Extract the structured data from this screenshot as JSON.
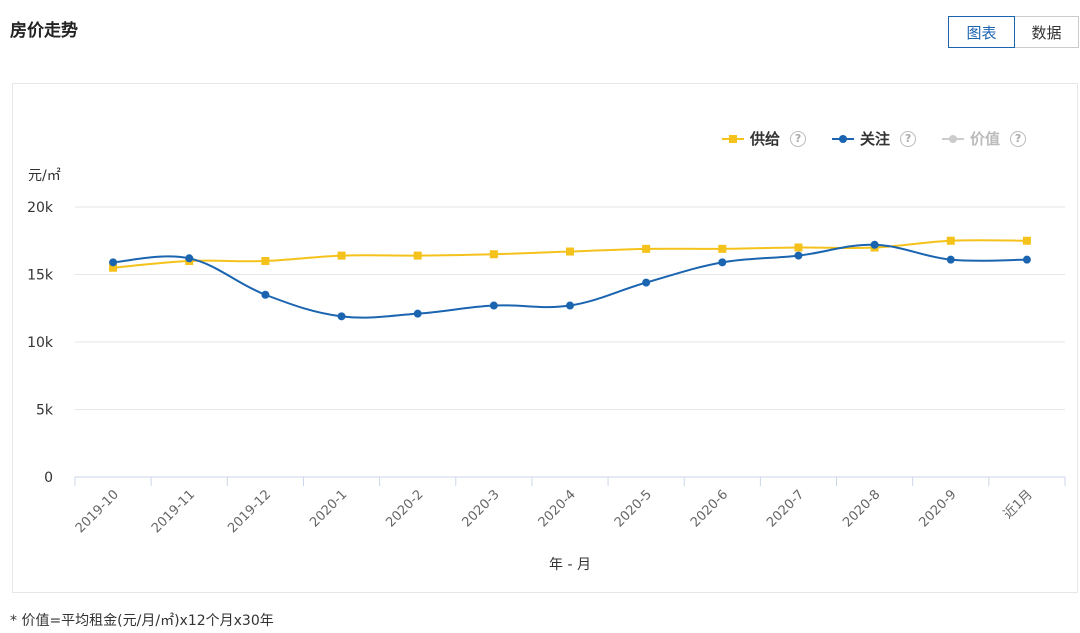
{
  "header": {
    "title": "房价走势",
    "toggle": [
      {
        "label": "图表",
        "active": true
      },
      {
        "label": "数据",
        "active": false
      }
    ]
  },
  "footnote": "* 价值=平均租金(元/月/㎡)x12个月x30年",
  "legend": [
    {
      "label": "供给",
      "color": "#f5c21b",
      "marker": "square",
      "enabled": true,
      "help_icon": "question-circle-icon"
    },
    {
      "label": "关注",
      "color": "#1a64b0",
      "marker": "circle",
      "enabled": true,
      "help_icon": "question-circle-icon"
    },
    {
      "label": "价值",
      "color": "#cccccc",
      "marker": "circle",
      "enabled": false,
      "help_icon": "question-circle-icon"
    }
  ],
  "chart_data": {
    "type": "line",
    "title": "",
    "xlabel": "年 - 月",
    "ylabel": "元/㎡",
    "categories": [
      "2019-10",
      "2019-11",
      "2019-12",
      "2020-1",
      "2020-2",
      "2020-3",
      "2020-4",
      "2020-5",
      "2020-6",
      "2020-7",
      "2020-8",
      "2020-9",
      "近1月"
    ],
    "yticks": [
      "0",
      "5k",
      "10k",
      "15k",
      "20k"
    ],
    "ylim": [
      0,
      20000
    ],
    "grid": true,
    "legend_position": "top-right",
    "series": [
      {
        "name": "供给",
        "color": "#f5c21b",
        "marker": "square",
        "values": [
          15500,
          16000,
          16000,
          16400,
          16400,
          16500,
          16700,
          16900,
          16900,
          17000,
          17000,
          17500,
          17500
        ]
      },
      {
        "name": "关注",
        "color": "#1a64b0",
        "marker": "circle",
        "values": [
          15900,
          16200,
          13500,
          11900,
          12100,
          12700,
          12700,
          14400,
          15900,
          16400,
          17200,
          16100,
          16100
        ]
      }
    ]
  }
}
